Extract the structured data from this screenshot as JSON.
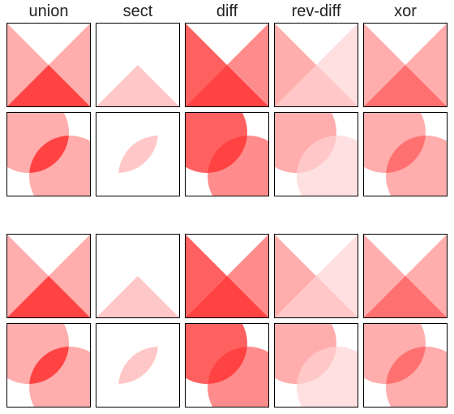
{
  "column_headers": [
    "union",
    "sect",
    "diff",
    "rev-diff",
    "xor"
  ],
  "colors": {
    "fill": "#ff0000",
    "background": "#ffffff",
    "border": "#000000"
  },
  "shape_opacities": {
    "union": {
      "a": 0.32,
      "b": 0.32,
      "overlap": 0.74
    },
    "sect": {
      "a": 0,
      "b": 0,
      "overlap": 0.22
    },
    "diff": {
      "a": 0.62,
      "b": 0.45,
      "overlap": 0.74
    },
    "rev-diff": {
      "a": 0.32,
      "b": 0.12,
      "overlap": 0.22
    },
    "xor": {
      "a": 0.32,
      "b": 0.32,
      "overlap": 0.56
    }
  },
  "rows": [
    {
      "shape_pair": "triangles"
    },
    {
      "shape_pair": "circles"
    },
    {
      "shape_pair": "triangles"
    },
    {
      "shape_pair": "circles"
    }
  ]
}
